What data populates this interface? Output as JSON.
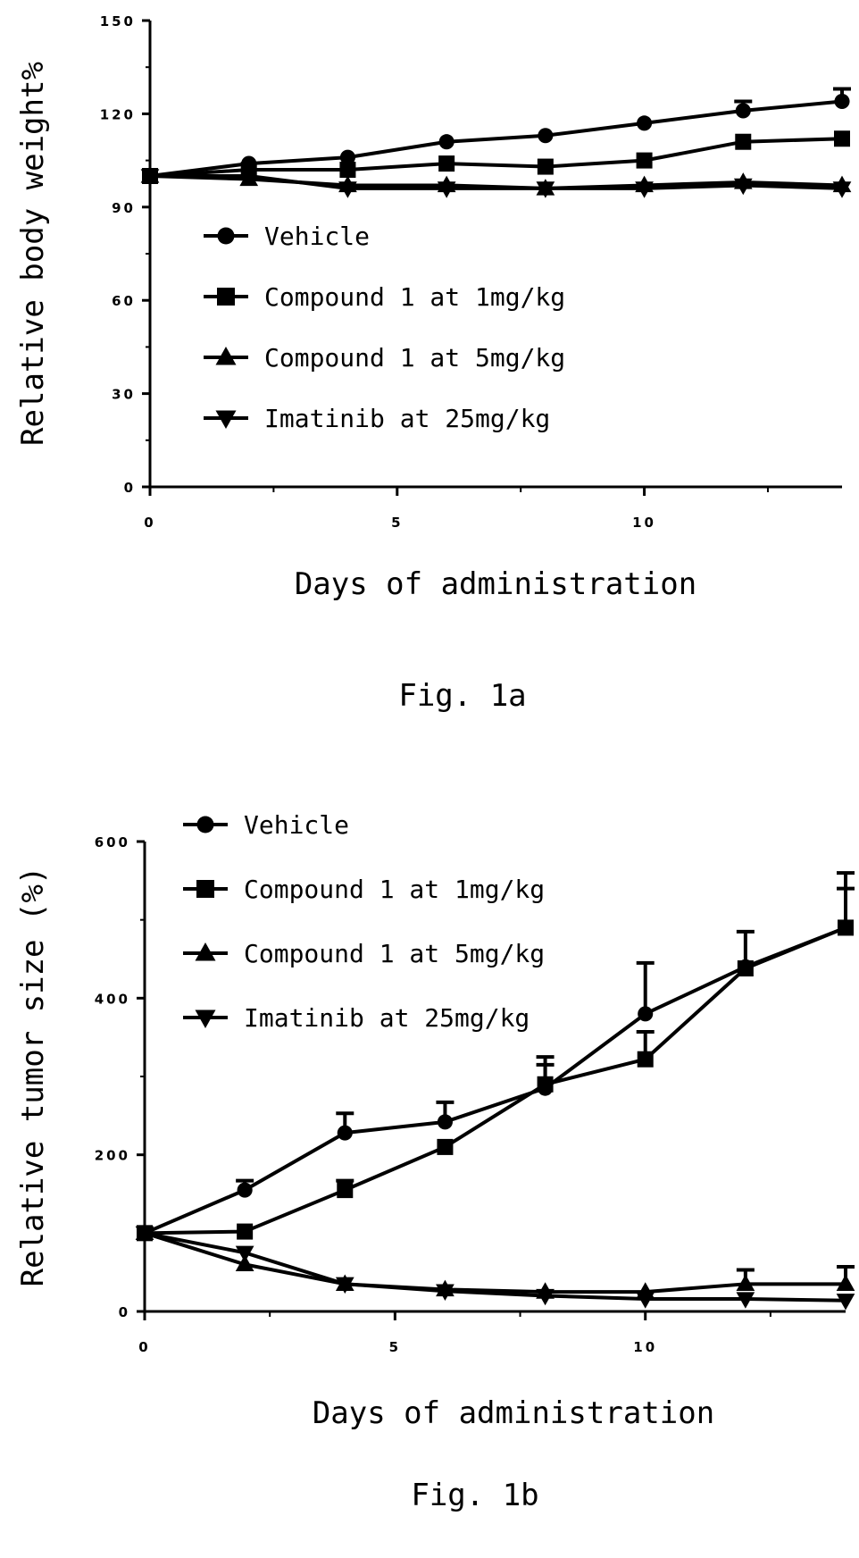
{
  "chart_data": [
    {
      "type": "line",
      "caption": "Fig. 1a",
      "xlabel": "Days of administration",
      "ylabel": "Relative body weight%",
      "xlim": [
        0,
        14
      ],
      "ylim": [
        0,
        150
      ],
      "x_ticks": [
        0,
        5,
        10
      ],
      "y_ticks": [
        0,
        30,
        60,
        90,
        120,
        150
      ],
      "legend_position": "center-left",
      "x": [
        0,
        2,
        4,
        6,
        8,
        10,
        12,
        14
      ],
      "series": [
        {
          "name": "Vehicle",
          "marker": "circle",
          "values": [
            100,
            104,
            106,
            111,
            113,
            117,
            121,
            124
          ],
          "errors": [
            0,
            0,
            0,
            0,
            0,
            0,
            3,
            4
          ]
        },
        {
          "name": "Compound 1 at 1mg/kg",
          "marker": "square",
          "values": [
            100,
            102,
            102,
            104,
            103,
            105,
            111,
            112
          ],
          "errors": [
            0,
            0,
            0,
            0,
            0,
            0,
            0,
            0
          ]
        },
        {
          "name": "Compound 1 at 5mg/kg",
          "marker": "triangle-up",
          "values": [
            100,
            99,
            97,
            97,
            96,
            97,
            98,
            97
          ],
          "errors": [
            0,
            0,
            0,
            0,
            0,
            0,
            0,
            0
          ]
        },
        {
          "name": "Imatinib at 25mg/kg",
          "marker": "triangle-down",
          "values": [
            100,
            100,
            96,
            96,
            96,
            96,
            97,
            96
          ],
          "errors": [
            0,
            0,
            0,
            0,
            0,
            0,
            0,
            0
          ]
        }
      ]
    },
    {
      "type": "line",
      "caption": "Fig. 1b",
      "xlabel": "Days of administration",
      "ylabel": "Relative tumor size (%)",
      "xlim": [
        0,
        14
      ],
      "ylim": [
        0,
        600
      ],
      "x_ticks": [
        0,
        5,
        10
      ],
      "y_ticks": [
        0,
        200,
        400,
        600
      ],
      "legend_position": "top-left",
      "x": [
        0,
        2,
        4,
        6,
        8,
        10,
        12,
        14
      ],
      "series": [
        {
          "name": "Vehicle",
          "marker": "circle",
          "values": [
            100,
            155,
            228,
            242,
            285,
            380,
            440,
            490
          ],
          "errors": [
            0,
            12,
            25,
            25,
            40,
            65,
            45,
            70
          ]
        },
        {
          "name": "Compound 1 at 1mg/kg",
          "marker": "square",
          "values": [
            100,
            102,
            155,
            210,
            290,
            322,
            438,
            490
          ],
          "errors": [
            0,
            0,
            12,
            0,
            25,
            35,
            0,
            50
          ]
        },
        {
          "name": "Compound 1 at 5mg/kg",
          "marker": "triangle-up",
          "values": [
            100,
            60,
            35,
            28,
            25,
            25,
            35,
            35
          ],
          "errors": [
            0,
            0,
            0,
            0,
            0,
            0,
            18,
            22
          ]
        },
        {
          "name": "Imatinib at 25mg/kg",
          "marker": "triangle-down",
          "values": [
            100,
            75,
            35,
            26,
            20,
            16,
            16,
            14
          ],
          "errors": [
            0,
            0,
            0,
            0,
            0,
            0,
            0,
            0
          ]
        }
      ]
    }
  ]
}
